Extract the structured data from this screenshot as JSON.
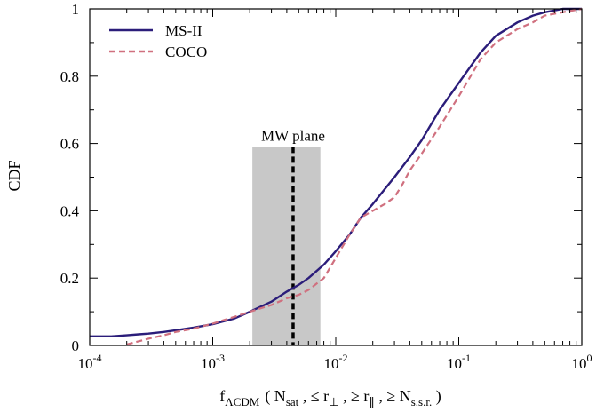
{
  "chart_data": {
    "type": "line",
    "x_scale": "log",
    "xlim": [
      0.0001,
      1
    ],
    "ylim": [
      0,
      1
    ],
    "x_tick_labels": [
      {
        "base": "10",
        "exp": "-4",
        "value": 0.0001
      },
      {
        "base": "10",
        "exp": "-3",
        "value": 0.001
      },
      {
        "base": "10",
        "exp": "-2",
        "value": 0.01
      },
      {
        "base": "10",
        "exp": "-1",
        "value": 0.1
      },
      {
        "base": "10",
        "exp": "0",
        "value": 1
      }
    ],
    "y_ticks": [
      0,
      0.2,
      0.4,
      0.6,
      0.8,
      1
    ],
    "y_tick_labels": [
      "0",
      "0.2",
      "0.4",
      "0.6",
      "0.8",
      "1"
    ],
    "ylabel": "CDF",
    "xlabel": {
      "f": "f",
      "f_sub": "ΛCDM",
      "open": "( N",
      "n_sub": "sat",
      "part1": " , ≤ r",
      "r1_sub": "⊥",
      "part2": " ,  ≥ r",
      "r2_sub": "∥",
      "part3": " ,  ≥ N",
      "n2_sub": "s.s.r.",
      "close": " )"
    },
    "legend_position": "top-left",
    "series": [
      {
        "name": "MS-II",
        "color": "#2b1d7a",
        "dash": "solid",
        "points": [
          [
            0.0001,
            0.027
          ],
          [
            0.00015,
            0.027
          ],
          [
            0.0002,
            0.03
          ],
          [
            0.00025,
            0.033
          ],
          [
            0.0003,
            0.035
          ],
          [
            0.0004,
            0.04
          ],
          [
            0.0005,
            0.045
          ],
          [
            0.0007,
            0.053
          ],
          [
            0.001,
            0.063
          ],
          [
            0.0015,
            0.08
          ],
          [
            0.002,
            0.1
          ],
          [
            0.003,
            0.13
          ],
          [
            0.004,
            0.16
          ],
          [
            0.005,
            0.18
          ],
          [
            0.006,
            0.2
          ],
          [
            0.008,
            0.24
          ],
          [
            0.01,
            0.28
          ],
          [
            0.013,
            0.33
          ],
          [
            0.016,
            0.38
          ],
          [
            0.02,
            0.42
          ],
          [
            0.03,
            0.5
          ],
          [
            0.04,
            0.56
          ],
          [
            0.05,
            0.61
          ],
          [
            0.07,
            0.7
          ],
          [
            0.1,
            0.78
          ],
          [
            0.15,
            0.87
          ],
          [
            0.2,
            0.92
          ],
          [
            0.3,
            0.96
          ],
          [
            0.4,
            0.98
          ],
          [
            0.5,
            0.99
          ],
          [
            0.7,
            1.0
          ],
          [
            1.0,
            1.0
          ]
        ]
      },
      {
        "name": "COCO",
        "color": "#d0707f",
        "dash": "dashed",
        "points": [
          [
            0.0002,
            0.003
          ],
          [
            0.0003,
            0.02
          ],
          [
            0.0004,
            0.03
          ],
          [
            0.0005,
            0.04
          ],
          [
            0.0007,
            0.05
          ],
          [
            0.001,
            0.065
          ],
          [
            0.0015,
            0.085
          ],
          [
            0.002,
            0.1
          ],
          [
            0.003,
            0.12
          ],
          [
            0.004,
            0.14
          ],
          [
            0.005,
            0.15
          ],
          [
            0.006,
            0.165
          ],
          [
            0.008,
            0.2
          ],
          [
            0.01,
            0.26
          ],
          [
            0.013,
            0.33
          ],
          [
            0.016,
            0.38
          ],
          [
            0.02,
            0.4
          ],
          [
            0.025,
            0.42
          ],
          [
            0.03,
            0.44
          ],
          [
            0.035,
            0.48
          ],
          [
            0.04,
            0.52
          ],
          [
            0.05,
            0.57
          ],
          [
            0.07,
            0.65
          ],
          [
            0.1,
            0.74
          ],
          [
            0.15,
            0.85
          ],
          [
            0.2,
            0.9
          ],
          [
            0.3,
            0.94
          ],
          [
            0.4,
            0.96
          ],
          [
            0.5,
            0.98
          ],
          [
            0.7,
            0.99
          ],
          [
            1.0,
            1.0
          ]
        ]
      }
    ],
    "annotation": {
      "label": "MW plane",
      "x": 0.0045,
      "band_x": [
        0.0021,
        0.0075
      ],
      "band_ymax": 0.59,
      "band_color": "#c8c8c8"
    }
  }
}
